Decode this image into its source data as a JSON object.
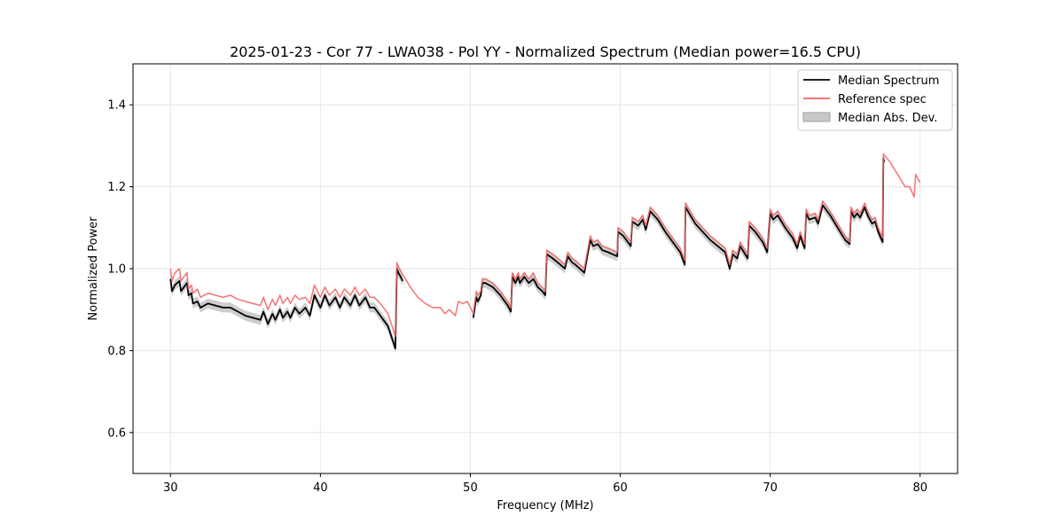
{
  "chart_data": {
    "type": "line",
    "title": "2025-01-23 - Cor 77 - LWA038 - Pol YY - Normalized Spectrum (Median power=16.5 CPU)",
    "xlabel": "Frequency (MHz)",
    "ylabel": "Normalized Power",
    "xlim": [
      27.5,
      82.5
    ],
    "ylim": [
      0.5,
      1.5
    ],
    "xticks": [
      30,
      40,
      50,
      60,
      70,
      80
    ],
    "yticks": [
      0.6,
      0.8,
      1.0,
      1.2,
      1.4
    ],
    "xtick_labels": [
      "30",
      "40",
      "50",
      "60",
      "70",
      "80"
    ],
    "ytick_labels": [
      "0.6",
      "0.8",
      "1.0",
      "1.2",
      "1.4"
    ],
    "grid": true,
    "legend_position": "top-right",
    "legend": [
      {
        "label": "Median Spectrum",
        "style": "line",
        "color": "#000000"
      },
      {
        "label": "Reference spec",
        "style": "line",
        "color": "#f06464"
      },
      {
        "label": "Median Abs. Dev.",
        "style": "patch",
        "color": "#c8c8c8"
      }
    ],
    "series": [
      {
        "name": "Reference spec",
        "color": "#f06464",
        "x": [
          30.0,
          30.1,
          30.3,
          30.6,
          30.7,
          30.9,
          31.1,
          31.2,
          31.4,
          31.5,
          31.8,
          32.0,
          32.5,
          33.0,
          33.5,
          34.0,
          34.5,
          35.0,
          35.5,
          36.0,
          36.2,
          36.5,
          36.8,
          37.0,
          37.3,
          37.5,
          37.8,
          38.0,
          38.3,
          38.6,
          39.0,
          39.3,
          39.6,
          40.0,
          40.3,
          40.6,
          41.0,
          41.3,
          41.6,
          42.0,
          42.3,
          42.6,
          43.0,
          43.3,
          43.6,
          44.0,
          44.5,
          45.0,
          45.1,
          45.2,
          45.5,
          46.0,
          46.5,
          47.0,
          47.5,
          48.0,
          48.3,
          48.6,
          49.0,
          49.2,
          49.5,
          49.8,
          50.0,
          50.2,
          50.4,
          50.5,
          50.7,
          50.8,
          51.0,
          51.5,
          52.0,
          52.3,
          52.5,
          52.7,
          52.8,
          53.0,
          53.2,
          53.3,
          53.6,
          53.9,
          54.2,
          54.5,
          54.8,
          55.0,
          55.1,
          55.5,
          56.0,
          56.3,
          56.5,
          56.8,
          57.0,
          57.3,
          57.6,
          58.0,
          58.2,
          58.5,
          58.8,
          59.2,
          59.5,
          59.8,
          59.85,
          60.2,
          60.7,
          60.8,
          61.2,
          61.5,
          61.7,
          62.0,
          62.5,
          63.0,
          63.5,
          64.0,
          64.3,
          64.35,
          65.0,
          66.0,
          66.5,
          67.0,
          67.3,
          67.5,
          67.8,
          68.0,
          68.5,
          68.6,
          69.0,
          69.5,
          69.8,
          70.0,
          70.2,
          70.5,
          71.0,
          71.5,
          71.8,
          72.0,
          72.3,
          72.4,
          72.6,
          73.0,
          73.2,
          73.5,
          74.0,
          74.5,
          75.0,
          75.3,
          75.4,
          75.6,
          75.8,
          76.0,
          76.3,
          76.5,
          76.8,
          77.0,
          77.2,
          77.5,
          77.55,
          78.0,
          78.5,
          79.0,
          79.3,
          79.6,
          79.7,
          80.0
        ],
        "values": [
          1.0,
          0.97,
          0.99,
          1.0,
          0.97,
          0.98,
          0.99,
          0.95,
          0.96,
          0.94,
          0.95,
          0.93,
          0.94,
          0.935,
          0.93,
          0.935,
          0.925,
          0.92,
          0.915,
          0.91,
          0.93,
          0.9,
          0.925,
          0.91,
          0.935,
          0.915,
          0.93,
          0.915,
          0.935,
          0.925,
          0.93,
          0.915,
          0.96,
          0.93,
          0.955,
          0.935,
          0.95,
          0.93,
          0.95,
          0.935,
          0.955,
          0.935,
          0.95,
          0.93,
          0.93,
          0.915,
          0.89,
          0.835,
          1.015,
          1.005,
          0.985,
          0.955,
          0.93,
          0.915,
          0.905,
          0.905,
          0.89,
          0.9,
          0.885,
          0.92,
          0.915,
          0.92,
          0.905,
          0.89,
          0.945,
          0.935,
          0.945,
          0.975,
          0.975,
          0.965,
          0.945,
          0.93,
          0.92,
          0.905,
          0.99,
          0.975,
          0.99,
          0.975,
          0.99,
          0.975,
          0.99,
          0.965,
          0.955,
          0.945,
          1.045,
          1.035,
          1.02,
          1.01,
          1.04,
          1.025,
          1.02,
          1.01,
          1.0,
          1.08,
          1.065,
          1.07,
          1.055,
          1.05,
          1.045,
          1.04,
          1.1,
          1.09,
          1.065,
          1.125,
          1.115,
          1.13,
          1.105,
          1.15,
          1.13,
          1.1,
          1.075,
          1.05,
          1.02,
          1.16,
          1.12,
          1.08,
          1.065,
          1.05,
          1.01,
          1.045,
          1.035,
          1.065,
          1.035,
          1.115,
          1.1,
          1.075,
          1.05,
          1.145,
          1.13,
          1.14,
          1.11,
          1.085,
          1.06,
          1.09,
          1.06,
          1.145,
          1.13,
          1.135,
          1.12,
          1.165,
          1.14,
          1.11,
          1.08,
          1.065,
          1.15,
          1.135,
          1.145,
          1.135,
          1.16,
          1.14,
          1.12,
          1.125,
          1.1,
          1.075,
          1.28,
          1.26,
          1.23,
          1.2,
          1.2,
          1.175,
          1.23,
          1.21
        ]
      },
      {
        "name": "Median Spectrum",
        "color": "#000000",
        "x": [
          30.0,
          30.1,
          30.3,
          30.6,
          30.7,
          30.9,
          31.1,
          31.2,
          31.4,
          31.5,
          31.8,
          32.0,
          32.5,
          33.0,
          33.5,
          34.0,
          34.5,
          35.0,
          35.5,
          36.0,
          36.2,
          36.5,
          36.8,
          37.0,
          37.3,
          37.5,
          37.8,
          38.0,
          38.3,
          38.6,
          39.0,
          39.3,
          39.6,
          40.0,
          40.3,
          40.6,
          41.0,
          41.3,
          41.6,
          42.0,
          42.3,
          42.6,
          43.0,
          43.3,
          43.6,
          44.0,
          44.5,
          45.0,
          45.1,
          45.2,
          45.5,
          null,
          50.2,
          50.4,
          50.5,
          50.7,
          50.8,
          51.0,
          51.5,
          52.0,
          52.3,
          52.5,
          52.7,
          52.8,
          53.0,
          53.2,
          53.3,
          53.6,
          53.9,
          54.2,
          54.5,
          54.8,
          55.0,
          55.1,
          55.5,
          56.0,
          56.3,
          56.5,
          56.8,
          57.0,
          57.3,
          57.6,
          58.0,
          58.2,
          58.5,
          58.8,
          59.2,
          59.5,
          59.8,
          59.85,
          60.2,
          60.7,
          60.8,
          61.2,
          61.5,
          61.7,
          62.0,
          62.5,
          63.0,
          63.5,
          64.0,
          64.3,
          64.35,
          65.0,
          66.0,
          66.5,
          67.0,
          67.3,
          67.5,
          67.8,
          68.0,
          68.5,
          68.6,
          69.0,
          69.5,
          69.8,
          70.0,
          70.2,
          70.5,
          71.0,
          71.5,
          71.8,
          72.0,
          72.3,
          72.4,
          72.6,
          73.0,
          73.2,
          73.5,
          74.0,
          74.5,
          75.0,
          75.3,
          75.4,
          75.6,
          75.8,
          76.0,
          76.3,
          76.5,
          76.8,
          77.0,
          77.2,
          77.5,
          77.55,
          77.6
        ],
        "values": [
          0.975,
          0.945,
          0.96,
          0.97,
          0.945,
          0.955,
          0.965,
          0.935,
          0.94,
          0.915,
          0.92,
          0.905,
          0.915,
          0.91,
          0.905,
          0.905,
          0.895,
          0.885,
          0.88,
          0.875,
          0.895,
          0.865,
          0.89,
          0.875,
          0.9,
          0.88,
          0.895,
          0.88,
          0.905,
          0.89,
          0.905,
          0.885,
          0.935,
          0.905,
          0.935,
          0.91,
          0.93,
          0.905,
          0.93,
          0.91,
          0.935,
          0.91,
          0.93,
          0.905,
          0.905,
          0.885,
          0.86,
          0.805,
          1.0,
          0.99,
          0.97,
          null,
          0.88,
          0.93,
          0.92,
          0.935,
          0.965,
          0.965,
          0.955,
          0.935,
          0.92,
          0.91,
          0.895,
          0.98,
          0.965,
          0.98,
          0.965,
          0.98,
          0.965,
          0.975,
          0.955,
          0.945,
          0.935,
          1.035,
          1.025,
          1.01,
          1.0,
          1.03,
          1.015,
          1.01,
          1.0,
          0.99,
          1.07,
          1.055,
          1.06,
          1.045,
          1.04,
          1.035,
          1.03,
          1.09,
          1.08,
          1.055,
          1.115,
          1.105,
          1.12,
          1.095,
          1.14,
          1.12,
          1.09,
          1.065,
          1.04,
          1.01,
          1.15,
          1.11,
          1.07,
          1.055,
          1.04,
          1.0,
          1.035,
          1.025,
          1.055,
          1.025,
          1.105,
          1.09,
          1.065,
          1.04,
          1.135,
          1.12,
          1.13,
          1.1,
          1.075,
          1.05,
          1.08,
          1.05,
          1.135,
          1.12,
          1.125,
          1.11,
          1.155,
          1.13,
          1.1,
          1.07,
          1.06,
          1.14,
          1.125,
          1.135,
          1.125,
          1.15,
          1.13,
          1.11,
          1.115,
          1.09,
          1.065,
          1.27,
          1.26
        ]
      },
      {
        "name": "Median Abs. Dev.",
        "color": "#c8c8c8",
        "band_halfwidth": 0.012
      }
    ]
  }
}
